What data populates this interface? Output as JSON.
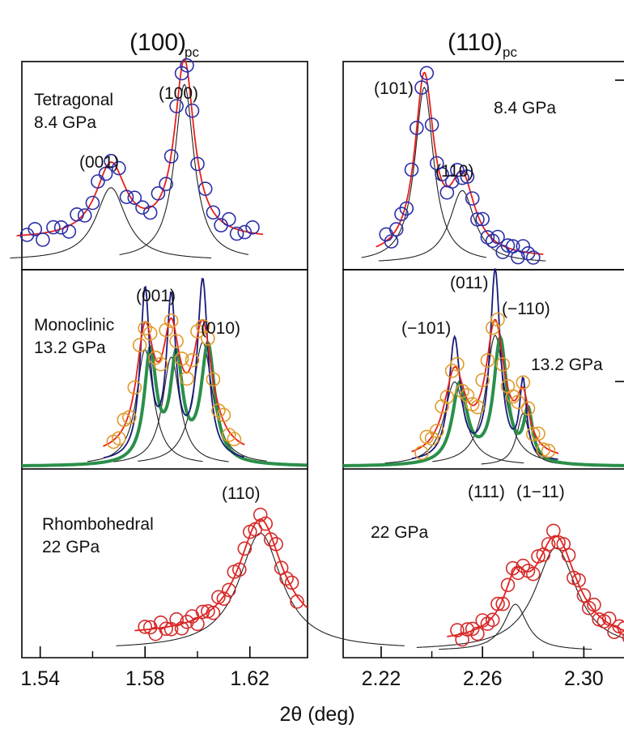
{
  "chart_data": {
    "type": "scatter",
    "x_axis_label": "2θ (deg)",
    "columns": [
      {
        "title": "(100)",
        "title_subscript": "pc",
        "x_ticks": [
          "1.54",
          "1.58",
          "1.62"
        ],
        "xlim": [
          1.533,
          1.642
        ]
      },
      {
        "title": "(110)",
        "title_subscript": "pc",
        "x_ticks": [
          "2.22",
          "2.26",
          "2.30"
        ],
        "xlim": [
          2.205,
          2.32
        ]
      }
    ],
    "colors": {
      "tetragonal_points": "#2b2fa8",
      "monoclinic_points": "#e09a2a",
      "rhombohedral_points": "#d42a2a",
      "fit": "#e8201a",
      "components": "#222222",
      "calc_blue": "#1a1a7a",
      "calc_green": "#2a8f4a"
    },
    "panels": [
      {
        "id": "tetragonal-100",
        "phase_label": [
          "Tetragonal",
          "8.4 GPa"
        ],
        "peaks": [
          {
            "hkl": "(001)",
            "position": 1.567,
            "height": 0.38,
            "width": 0.007
          },
          {
            "hkl": "(100)",
            "position": 1.595,
            "height": 0.92,
            "width": 0.0045
          }
        ],
        "background": 0.13,
        "points_color": "tetragonal_points",
        "points_x": [
          1.535,
          1.538,
          1.541,
          1.545,
          1.548,
          1.551,
          1.554,
          1.557,
          1.56,
          1.562,
          1.565,
          1.567,
          1.57,
          1.573,
          1.576,
          1.579,
          1.582,
          1.585,
          1.588,
          1.59,
          1.592,
          1.594,
          1.596,
          1.598,
          1.6,
          1.603,
          1.606,
          1.609,
          1.612,
          1.615,
          1.618,
          1.621
        ]
      },
      {
        "id": "tetragonal-110",
        "phase_label": [
          "8.4 GPa"
        ],
        "peaks": [
          {
            "hkl": "(101)",
            "position": 2.237,
            "height": 0.92,
            "width": 0.0045
          },
          {
            "hkl": "(110)",
            "position": 2.252,
            "height": 0.38,
            "width": 0.006
          }
        ],
        "background": 0.03,
        "points_color": "tetragonal_points",
        "points_x": [
          2.222,
          2.224,
          2.226,
          2.228,
          2.23,
          2.232,
          2.234,
          2.236,
          2.238,
          2.24,
          2.242,
          2.244,
          2.246,
          2.248,
          2.25,
          2.252,
          2.254,
          2.256,
          2.258,
          2.26,
          2.262,
          2.264,
          2.266,
          2.268,
          2.27,
          2.272,
          2.274,
          2.276,
          2.278,
          2.28
        ]
      },
      {
        "id": "monoclinic-100",
        "phase_label": [
          "Monoclinic",
          "13.2 GPa"
        ],
        "peaks": [
          {
            "hkl": "(001)",
            "position": 1.58,
            "height": 0.62,
            "width": 0.004
          },
          {
            "hkl": "",
            "position": 1.59,
            "height": 0.58,
            "width": 0.004
          },
          {
            "hkl": "(010)",
            "position": 1.602,
            "height": 0.66,
            "width": 0.0045
          }
        ],
        "background": 0.05,
        "points_color": "monoclinic_points",
        "points_x": [
          1.568,
          1.57,
          1.572,
          1.574,
          1.576,
          1.578,
          1.58,
          1.582,
          1.584,
          1.586,
          1.588,
          1.59,
          1.592,
          1.594,
          1.596,
          1.598,
          1.6,
          1.602,
          1.604,
          1.606,
          1.608,
          1.61,
          1.612,
          1.614
        ]
      },
      {
        "id": "monoclinic-110",
        "phase_label": [
          "13.2 GPa"
        ],
        "hkl_labels": [
          "(−101)",
          "(011)",
          "(−110)"
        ],
        "peaks": [
          {
            "hkl": "",
            "position": 2.249,
            "height": 0.45,
            "width": 0.005
          },
          {
            "hkl": "",
            "position": 2.265,
            "height": 0.7,
            "width": 0.0045
          },
          {
            "hkl": "",
            "position": 2.276,
            "height": 0.28,
            "width": 0.003
          }
        ],
        "background": 0.03,
        "points_color": "monoclinic_points",
        "points_x": [
          2.236,
          2.238,
          2.24,
          2.242,
          2.244,
          2.246,
          2.248,
          2.25,
          2.252,
          2.254,
          2.256,
          2.258,
          2.26,
          2.262,
          2.264,
          2.266,
          2.268,
          2.27,
          2.272,
          2.274,
          2.276,
          2.278,
          2.28,
          2.282,
          2.284,
          2.286
        ]
      },
      {
        "id": "rhombohedral-100",
        "phase_label": [
          "Rhombohedral",
          "22 GPa"
        ],
        "peaks": [
          {
            "hkl": "(110)",
            "position": 1.624,
            "height": 0.7,
            "width": 0.01
          }
        ],
        "background": 0.1,
        "points_color": "rhombohedral_points",
        "points_x": [
          1.58,
          1.582,
          1.584,
          1.586,
          1.588,
          1.59,
          1.592,
          1.594,
          1.596,
          1.598,
          1.6,
          1.602,
          1.604,
          1.606,
          1.608,
          1.61,
          1.612,
          1.614,
          1.616,
          1.618,
          1.62,
          1.622,
          1.624,
          1.626,
          1.628,
          1.63,
          1.632,
          1.634,
          1.636,
          1.638
        ]
      },
      {
        "id": "rhombohedral-110",
        "phase_label": [
          "22 GPa"
        ],
        "hkl_labels": [
          "(111)",
          "(1−11)"
        ],
        "peaks": [
          {
            "hkl": "",
            "position": 2.273,
            "height": 0.28,
            "width": 0.0055
          },
          {
            "hkl": "",
            "position": 2.289,
            "height": 0.62,
            "width": 0.01
          }
        ],
        "background": 0.05,
        "points_color": "rhombohedral_points",
        "points_x": [
          2.25,
          2.252,
          2.254,
          2.256,
          2.258,
          2.26,
          2.262,
          2.264,
          2.266,
          2.268,
          2.27,
          2.272,
          2.274,
          2.276,
          2.278,
          2.28,
          2.282,
          2.284,
          2.286,
          2.288,
          2.29,
          2.292,
          2.294,
          2.296,
          2.298,
          2.3,
          2.302,
          2.304,
          2.306,
          2.308,
          2.31,
          2.312,
          2.314,
          2.316,
          2.318
        ]
      }
    ]
  }
}
